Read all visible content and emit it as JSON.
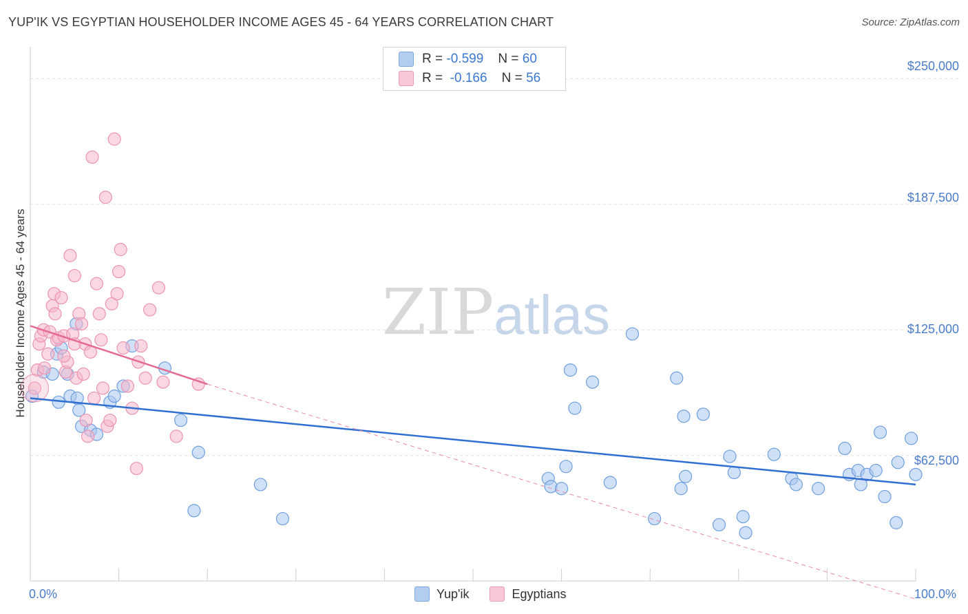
{
  "title": "YUP'IK VS EGYPTIAN HOUSEHOLDER INCOME AGES 45 - 64 YEARS CORRELATION CHART",
  "source": "Source: ZipAtlas.com",
  "watermark": {
    "zip": "ZIP",
    "atlas": "atlas"
  },
  "colors": {
    "yupik": "#4a85d6",
    "yupik_fill": "#a9c7ee",
    "egypt": "#e7739b",
    "egypt_fill": "#f5b7cb",
    "axis_text": "#4a7cc9"
  },
  "legend": {
    "rows": [
      {
        "r_label": "R =",
        "r_value": "-0.599",
        "n_label": "N =",
        "n_value": "60"
      },
      {
        "r_label": "R =",
        "r_value": "-0.166",
        "n_label": "N =",
        "n_value": "56"
      }
    ]
  },
  "chart_data": {
    "type": "scatter",
    "title": "YUP'IK VS EGYPTIAN HOUSEHOLDER INCOME AGES 45 - 64 YEARS CORRELATION CHART",
    "xlabel": "",
    "ylabel": "Householder Income Ages 45 - 64 years",
    "xlim": [
      0,
      100
    ],
    "ylim": [
      0,
      262500
    ],
    "x_tick_labels": [
      "0.0%",
      "100.0%"
    ],
    "y_ticks": [
      62500,
      125000,
      187500,
      250000
    ],
    "y_tick_labels": [
      "$62,500",
      "$125,000",
      "$187,500",
      "$250,000"
    ],
    "grid": "horizontal dashed",
    "legend_position": "top-center",
    "series": [
      {
        "name": "Yup'ik",
        "color": "#4a85d6",
        "trend": {
          "x": [
            0,
            100
          ],
          "y": [
            91000,
            48000
          ],
          "style": "solid"
        },
        "points": [
          [
            0.2,
            92000
          ],
          [
            1.5,
            104000
          ],
          [
            2.5,
            103000
          ],
          [
            3.0,
            113000
          ],
          [
            3.2,
            89000
          ],
          [
            3.5,
            116000
          ],
          [
            4.2,
            103000
          ],
          [
            4.5,
            92000
          ],
          [
            5.5,
            85000
          ],
          [
            5.2,
            128000
          ],
          [
            5.3,
            91000
          ],
          [
            5.8,
            77000
          ],
          [
            6.8,
            75000
          ],
          [
            7.5,
            73000
          ],
          [
            9.0,
            89000
          ],
          [
            9.5,
            92000
          ],
          [
            10.5,
            97000
          ],
          [
            11.5,
            117000
          ],
          [
            15.2,
            106000
          ],
          [
            17.0,
            80000
          ],
          [
            18.5,
            35000
          ],
          [
            19.0,
            64000
          ],
          [
            26.0,
            48000
          ],
          [
            28.5,
            31000
          ],
          [
            58.5,
            51000
          ],
          [
            58.8,
            47000
          ],
          [
            60.0,
            46000
          ],
          [
            60.5,
            57000
          ],
          [
            61.0,
            105000
          ],
          [
            61.5,
            86000
          ],
          [
            63.5,
            99000
          ],
          [
            65.5,
            49000
          ],
          [
            68.0,
            123000
          ],
          [
            70.5,
            31000
          ],
          [
            73.0,
            101000
          ],
          [
            73.5,
            46000
          ],
          [
            73.8,
            82000
          ],
          [
            74.0,
            52000
          ],
          [
            76.0,
            83000
          ],
          [
            77.8,
            28000
          ],
          [
            79.0,
            62000
          ],
          [
            79.5,
            54000
          ],
          [
            80.5,
            32000
          ],
          [
            80.8,
            24000
          ],
          [
            84.0,
            63000
          ],
          [
            86.0,
            51000
          ],
          [
            86.5,
            48000
          ],
          [
            89.0,
            46000
          ],
          [
            92.0,
            66000
          ],
          [
            92.5,
            53000
          ],
          [
            93.5,
            55000
          ],
          [
            93.8,
            48000
          ],
          [
            94.5,
            53000
          ],
          [
            95.5,
            55000
          ],
          [
            96.5,
            42000
          ],
          [
            97.8,
            29000
          ],
          [
            98.0,
            59000
          ],
          [
            100.0,
            53000
          ],
          [
            99.5,
            71000
          ],
          [
            96.0,
            74000
          ]
        ]
      },
      {
        "name": "Egyptians",
        "color": "#e7739b",
        "trend": {
          "x": [
            0,
            20
          ],
          "y": [
            127000,
            98000
          ],
          "style": "solid",
          "extended": {
            "x": [
              20,
              100
            ],
            "y": [
              98000,
              -9000
            ],
            "style": "dashed"
          }
        },
        "points": [
          [
            0.5,
            96000
          ],
          [
            0.8,
            105000
          ],
          [
            1.0,
            118000
          ],
          [
            1.2,
            122000
          ],
          [
            1.5,
            125000
          ],
          [
            1.6,
            106000
          ],
          [
            2.0,
            113000
          ],
          [
            2.2,
            124000
          ],
          [
            2.5,
            137000
          ],
          [
            2.7,
            143000
          ],
          [
            2.8,
            133000
          ],
          [
            3.0,
            120000
          ],
          [
            3.2,
            121000
          ],
          [
            3.5,
            141000
          ],
          [
            3.8,
            122000
          ],
          [
            4.0,
            104000
          ],
          [
            4.2,
            109000
          ],
          [
            4.5,
            162000
          ],
          [
            4.8,
            123000
          ],
          [
            5.0,
            152000
          ],
          [
            5.2,
            101000
          ],
          [
            5.5,
            133000
          ],
          [
            5.8,
            128000
          ],
          [
            6.0,
            103000
          ],
          [
            6.2,
            118000
          ],
          [
            6.3,
            80000
          ],
          [
            6.5,
            72000
          ],
          [
            6.8,
            114000
          ],
          [
            7.0,
            211000
          ],
          [
            7.2,
            91000
          ],
          [
            7.5,
            148000
          ],
          [
            7.8,
            133000
          ],
          [
            8.0,
            120000
          ],
          [
            8.2,
            96000
          ],
          [
            8.5,
            191000
          ],
          [
            8.7,
            77000
          ],
          [
            9.0,
            80000
          ],
          [
            9.2,
            138000
          ],
          [
            9.5,
            220000
          ],
          [
            9.8,
            143000
          ],
          [
            10.0,
            154000
          ],
          [
            10.2,
            165000
          ],
          [
            10.5,
            116000
          ],
          [
            11.0,
            97000
          ],
          [
            11.5,
            86000
          ],
          [
            12.0,
            56000
          ],
          [
            12.2,
            109000
          ],
          [
            12.5,
            117000
          ],
          [
            13.0,
            101000
          ],
          [
            13.5,
            135000
          ],
          [
            14.5,
            146000
          ],
          [
            15.0,
            99000
          ],
          [
            16.5,
            72000
          ],
          [
            19.0,
            98000
          ],
          [
            3.8,
            112000
          ],
          [
            5.0,
            118000
          ]
        ]
      }
    ]
  },
  "bottom_legend": [
    {
      "label": "Yup'ik"
    },
    {
      "label": "Egyptians"
    }
  ]
}
